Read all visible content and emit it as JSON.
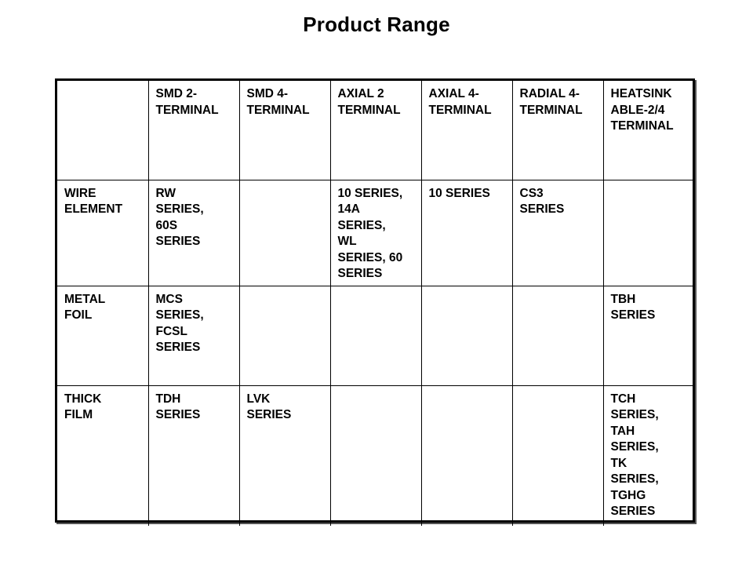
{
  "title": "Product Range",
  "table": {
    "corner": "",
    "columns": [
      "SMD 2-\nTERMINAL",
      "SMD 4-\nTERMINAL",
      "AXIAL 2\nTERMINAL",
      "AXIAL 4-\nTERMINAL",
      "RADIAL 4-\nTERMINAL",
      "HEATSINK\nABLE-2/4\nTERMINAL"
    ],
    "rows": [
      {
        "label": "WIRE\nELEMENT",
        "cells": [
          "RW\nSERIES,\n60S\nSERIES",
          "",
          "10 SERIES,\n14A\nSERIES,\nWL\nSERIES, 60\nSERIES",
          "10 SERIES",
          "CS3\nSERIES",
          ""
        ]
      },
      {
        "label": "METAL\nFOIL",
        "cells": [
          "MCS\nSERIES,\nFCSL\nSERIES",
          "",
          "",
          "",
          "",
          "TBH\nSERIES"
        ]
      },
      {
        "label": "THICK\nFILM",
        "cells": [
          "TDH\nSERIES",
          "LVK\nSERIES",
          "",
          "",
          "",
          "TCH\nSERIES,\nTAH\nSERIES,\nTK\nSERIES,\nTGHG\nSERIES"
        ]
      }
    ]
  }
}
